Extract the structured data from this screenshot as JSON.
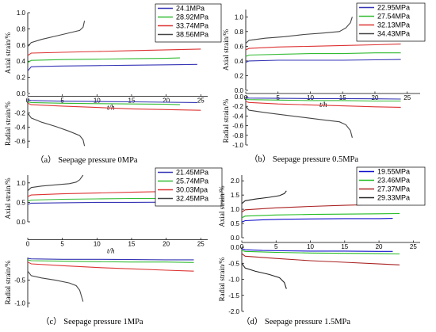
{
  "figure": {
    "captions": [
      "（a） Seepage pressure 0MPa",
      "（b） Seepage pressure 0.5MPa",
      "（c） Seepage pressure 1MPa",
      "（d） Seepage pressure 1.5MPa"
    ]
  },
  "chart_data": [
    {
      "type": "line",
      "panel": "a",
      "caption": "（a） Seepage pressure 0MPa",
      "xlabel": "t/h",
      "xticks": [
        0,
        5,
        10,
        15,
        20,
        25
      ],
      "xlim": [
        0,
        26
      ],
      "top": {
        "ylabel": "Axial strain/%",
        "ylim": [
          0,
          1.0
        ],
        "yticks": [
          0.0,
          0.2,
          0.4,
          0.6,
          0.8,
          1.0
        ]
      },
      "bottom": {
        "ylabel": "Radial strain/%",
        "ylim": [
          -0.7,
          0
        ],
        "yticks": [
          -0.6,
          -0.4,
          -0.2
        ]
      },
      "legend": {
        "position": "top-right"
      },
      "series": [
        {
          "name": "24.1MPa",
          "color": "#3535b5",
          "axial": {
            "x": [
              0,
              0.5,
              2,
              5,
              10,
              15,
              20,
              24.5
            ],
            "y": [
              0.28,
              0.33,
              0.335,
              0.34,
              0.345,
              0.35,
              0.355,
              0.36
            ]
          },
          "radial": {
            "x": [
              0,
              0.5,
              2,
              5,
              10,
              15,
              20,
              24.5
            ],
            "y": [
              -0.01,
              -0.02,
              -0.025,
              -0.03,
              -0.035,
              -0.04,
              -0.045,
              -0.05
            ]
          }
        },
        {
          "name": "28.92MPa",
          "color": "#33bb33",
          "axial": {
            "x": [
              0,
              0.5,
              5,
              10,
              15,
              20,
              22
            ],
            "y": [
              0.38,
              0.41,
              0.42,
              0.425,
              0.43,
              0.435,
              0.44
            ]
          },
          "radial": {
            "x": [
              0,
              0.5,
              5,
              10,
              15,
              20,
              22
            ],
            "y": [
              -0.04,
              -0.05,
              -0.06,
              -0.065,
              -0.07,
              -0.075,
              -0.08
            ]
          }
        },
        {
          "name": "33.74MPa",
          "color": "#dd3333",
          "axial": {
            "x": [
              0,
              0.5,
              5,
              10,
              15,
              20,
              25
            ],
            "y": [
              0.47,
              0.5,
              0.51,
              0.52,
              0.53,
              0.54,
              0.55
            ]
          },
          "radial": {
            "x": [
              0,
              0.5,
              5,
              10,
              15,
              20,
              25
            ],
            "y": [
              -0.06,
              -0.08,
              -0.1,
              -0.12,
              -0.14,
              -0.15,
              -0.16
            ]
          }
        },
        {
          "name": "38.56MPa",
          "color": "#444444",
          "axial": {
            "x": [
              0,
              0.5,
              2,
              4,
              6,
              7.5,
              8,
              8.2
            ],
            "y": [
              0.58,
              0.63,
              0.67,
              0.71,
              0.75,
              0.78,
              0.82,
              0.9
            ]
          },
          "radial": {
            "x": [
              0,
              0.5,
              2,
              4,
              6,
              7.5,
              8,
              8.2
            ],
            "y": [
              -0.2,
              -0.27,
              -0.33,
              -0.39,
              -0.46,
              -0.52,
              -0.58,
              -0.67
            ]
          }
        }
      ]
    },
    {
      "type": "line",
      "panel": "b",
      "caption": "（b） Seepage pressure 0.5MPa",
      "xlabel": "t/h",
      "xticks": [
        0,
        5,
        10,
        15,
        20,
        25
      ],
      "xlim": [
        0,
        27
      ],
      "top": {
        "ylabel": "Axial strain/%",
        "ylim": [
          0,
          1.1
        ],
        "yticks": [
          0.0,
          0.2,
          0.4,
          0.6,
          0.8,
          1.0
        ]
      },
      "bottom": {
        "ylabel": "Radial strain/%",
        "ylim": [
          -1.0,
          0
        ],
        "yticks": [
          -1.0,
          -0.8,
          -0.6,
          -0.4,
          -0.2,
          0.0
        ]
      },
      "legend": {
        "position": "top-right"
      },
      "series": [
        {
          "name": "22.95MPa",
          "color": "#3535b5",
          "axial": {
            "x": [
              0,
              0.5,
              5,
              10,
              15,
              20,
              24
            ],
            "y": [
              0.38,
              0.4,
              0.41,
              0.41,
              0.41,
              0.415,
              0.42
            ]
          },
          "radial": {
            "x": [
              0,
              0.5,
              5,
              10,
              15,
              20,
              24
            ],
            "y": [
              -0.02,
              -0.03,
              -0.035,
              -0.04,
              -0.04,
              -0.045,
              -0.05
            ]
          }
        },
        {
          "name": "27.54MPa",
          "color": "#33bb33",
          "axial": {
            "x": [
              0,
              0.5,
              5,
              10,
              15,
              20,
              24
            ],
            "y": [
              0.46,
              0.48,
              0.49,
              0.5,
              0.5,
              0.51,
              0.51
            ]
          },
          "radial": {
            "x": [
              0,
              0.5,
              5,
              10,
              15,
              20,
              24
            ],
            "y": [
              -0.05,
              -0.06,
              -0.07,
              -0.08,
              -0.08,
              -0.09,
              -0.09
            ]
          }
        },
        {
          "name": "32.13MPa",
          "color": "#dd3333",
          "axial": {
            "x": [
              0,
              0.5,
              5,
              10,
              15,
              20,
              24
            ],
            "y": [
              0.55,
              0.57,
              0.59,
              0.6,
              0.61,
              0.62,
              0.63
            ]
          },
          "radial": {
            "x": [
              0,
              0.5,
              5,
              10,
              15,
              20,
              24
            ],
            "y": [
              -0.1,
              -0.12,
              -0.15,
              -0.17,
              -0.19,
              -0.21,
              -0.22
            ]
          }
        },
        {
          "name": "34.43MPa",
          "color": "#444444",
          "axial": {
            "x": [
              0,
              0.5,
              3,
              6,
              9,
              12,
              14.5,
              15.5,
              16.2,
              16.5
            ],
            "y": [
              0.64,
              0.68,
              0.71,
              0.73,
              0.76,
              0.78,
              0.8,
              0.85,
              0.92,
              1.0
            ]
          },
          "radial": {
            "x": [
              0,
              0.5,
              3,
              6,
              9,
              12,
              14.5,
              15.5,
              16.2,
              16.5
            ],
            "y": [
              -0.2,
              -0.28,
              -0.33,
              -0.38,
              -0.43,
              -0.48,
              -0.52,
              -0.58,
              -0.7,
              -0.85
            ]
          }
        }
      ]
    },
    {
      "type": "line",
      "panel": "c",
      "caption": "（c） Seepage pressure 1MPa",
      "xlabel": "t/h",
      "xticks": [
        0,
        5,
        10,
        15,
        20,
        25
      ],
      "xlim": [
        0,
        26
      ],
      "top": {
        "ylabel": "Axial strain/%",
        "ylim": [
          0,
          1.2
        ],
        "yticks": [
          0.0,
          0.5,
          1.0
        ]
      },
      "bottom": {
        "ylabel": "Radial strain/%",
        "ylim": [
          -1.1,
          0
        ],
        "yticks": [
          -1.0,
          -0.5
        ]
      },
      "legend": {
        "position": "top-right"
      },
      "series": [
        {
          "name": "21.45MPa",
          "color": "#3535b5",
          "axial": {
            "x": [
              0,
              0.5,
              5,
              10,
              15,
              20,
              24
            ],
            "y": [
              0.45,
              0.48,
              0.49,
              0.5,
              0.5,
              0.505,
              0.51
            ]
          },
          "radial": {
            "x": [
              0,
              0.5,
              5,
              10,
              15,
              20,
              24
            ],
            "y": [
              -0.02,
              -0.03,
              -0.04,
              -0.04,
              -0.045,
              -0.05,
              -0.05
            ]
          }
        },
        {
          "name": "25.74MPa",
          "color": "#33bb33",
          "axial": {
            "x": [
              0,
              0.5,
              5,
              10,
              15,
              20,
              24
            ],
            "y": [
              0.53,
              0.56,
              0.58,
              0.59,
              0.6,
              0.6,
              0.61
            ]
          },
          "radial": {
            "x": [
              0,
              0.5,
              5,
              10,
              15,
              20,
              24
            ],
            "y": [
              -0.05,
              -0.07,
              -0.08,
              -0.09,
              -0.1,
              -0.1,
              -0.11
            ]
          }
        },
        {
          "name": "30.03Mpa",
          "color": "#dd3333",
          "axial": {
            "x": [
              0,
              0.5,
              5,
              10,
              15,
              20,
              24
            ],
            "y": [
              0.65,
              0.69,
              0.72,
              0.74,
              0.76,
              0.78,
              0.8
            ]
          },
          "radial": {
            "x": [
              0,
              0.5,
              5,
              10,
              15,
              20,
              24
            ],
            "y": [
              -0.1,
              -0.14,
              -0.18,
              -0.22,
              -0.25,
              -0.28,
              -0.3
            ]
          }
        },
        {
          "name": "32.45MPa",
          "color": "#444444",
          "axial": {
            "x": [
              0,
              0.5,
              2,
              4,
              6,
              7,
              7.5,
              8
            ],
            "y": [
              0.8,
              0.88,
              0.92,
              0.95,
              0.98,
              1.02,
              1.08,
              1.2
            ]
          },
          "radial": {
            "x": [
              0,
              0.5,
              2,
              4,
              6,
              7,
              7.5,
              8
            ],
            "y": [
              -0.3,
              -0.4,
              -0.45,
              -0.5,
              -0.56,
              -0.62,
              -0.72,
              -0.97
            ]
          }
        }
      ]
    },
    {
      "type": "line",
      "panel": "d",
      "caption": "（d） Seepage pressure 1.5MPa",
      "xlabel": "",
      "xticks": [
        0,
        5,
        10,
        15,
        20,
        25
      ],
      "xlim": [
        0,
        26
      ],
      "top": {
        "ylabel": "Axial strain/%",
        "ylim": [
          0,
          2.2
        ],
        "yticks": [
          0.0,
          0.5,
          1.0,
          1.5,
          2.0
        ]
      },
      "bottom": {
        "ylabel": "Radial strain/%",
        "ylim": [
          -2.0,
          0
        ],
        "yticks": [
          -2.0,
          -1.5,
          -1.0,
          -0.5,
          0.0
        ]
      },
      "legend": {
        "position": "top-right"
      },
      "series": [
        {
          "name": "19.55MPa",
          "color": "#1010cc",
          "axial": {
            "x": [
              0,
              0.5,
              3,
              6,
              10,
              15,
              20,
              22
            ],
            "y": [
              0.55,
              0.6,
              0.63,
              0.65,
              0.66,
              0.67,
              0.67,
              0.68
            ]
          },
          "radial": {
            "x": [
              0,
              0.5,
              3,
              6,
              10,
              15,
              20,
              22
            ],
            "y": [
              -0.05,
              -0.08,
              -0.1,
              -0.11,
              -0.12,
              -0.12,
              -0.13,
              -0.13
            ]
          }
        },
        {
          "name": "23.46MPa",
          "color": "#22bb22",
          "axial": {
            "x": [
              0,
              0.5,
              5,
              10,
              15,
              20,
              23
            ],
            "y": [
              0.7,
              0.76,
              0.8,
              0.82,
              0.83,
              0.84,
              0.85
            ]
          },
          "radial": {
            "x": [
              0,
              0.5,
              5,
              10,
              15,
              20,
              23
            ],
            "y": [
              -0.1,
              -0.13,
              -0.16,
              -0.18,
              -0.19,
              -0.2,
              -0.21
            ]
          }
        },
        {
          "name": "27.37MPa",
          "color": "#aa2222",
          "axial": {
            "x": [
              0,
              0.5,
              5,
              10,
              15,
              20,
              23
            ],
            "y": [
              0.9,
              0.98,
              1.05,
              1.1,
              1.14,
              1.17,
              1.2
            ]
          },
          "radial": {
            "x": [
              0,
              0.5,
              5,
              10,
              15,
              20,
              23
            ],
            "y": [
              -0.2,
              -0.28,
              -0.35,
              -0.42,
              -0.47,
              -0.52,
              -0.55
            ]
          }
        },
        {
          "name": "29.33MPa",
          "color": "#222222",
          "axial": {
            "x": [
              0,
              0.5,
              2,
              4,
              5.5,
              6.2,
              6.5
            ],
            "y": [
              1.2,
              1.3,
              1.36,
              1.42,
              1.48,
              1.55,
              1.65
            ]
          },
          "radial": {
            "x": [
              0,
              0.5,
              2,
              4,
              5.5,
              6.2,
              6.5
            ],
            "y": [
              -0.5,
              -0.65,
              -0.75,
              -0.85,
              -0.95,
              -1.1,
              -1.3
            ]
          }
        }
      ]
    }
  ]
}
